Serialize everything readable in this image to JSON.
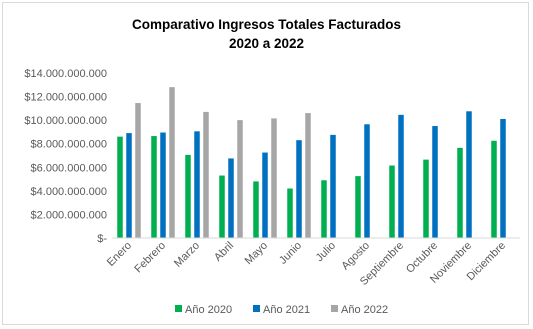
{
  "chart_data": {
    "type": "bar",
    "title_line1": "Comparativo  Ingresos Totales Facturados",
    "title_line2": "2020 a 2022",
    "categories": [
      "Enero",
      "Febrero",
      "Marzo",
      "Abril",
      "Mayo",
      "Junio",
      "Julio",
      "Agosto",
      "Septiembre",
      "Octubre",
      "Noviembre",
      "Diciembre"
    ],
    "series": [
      {
        "name": "Año 2020",
        "color": "#00b050",
        "values": [
          8600000000,
          8650000000,
          7050000000,
          5300000000,
          4800000000,
          4200000000,
          4900000000,
          5250000000,
          6150000000,
          6650000000,
          7650000000,
          8250000000
        ]
      },
      {
        "name": "Año 2021",
        "color": "#0070c0",
        "values": [
          8900000000,
          8950000000,
          9050000000,
          6750000000,
          7250000000,
          8300000000,
          8750000000,
          9650000000,
          10450000000,
          9500000000,
          10750000000,
          10100000000
        ]
      },
      {
        "name": "Año 2022",
        "color": "#a6a6a6",
        "values": [
          11450000000,
          12800000000,
          10700000000,
          10000000000,
          10150000000,
          10600000000,
          null,
          null,
          null,
          null,
          null,
          null
        ]
      }
    ],
    "ylim": [
      0,
      14000000000
    ],
    "yticks": [
      0,
      2000000000,
      4000000000,
      6000000000,
      8000000000,
      10000000000,
      12000000000,
      14000000000
    ],
    "ytick_labels": [
      "$-",
      "$2.000.000.000",
      "$4.000.000.000",
      "$6.000.000.000",
      "$8.000.000.000",
      "$10.000.000.000",
      "$12.000.000.000",
      "$14.000.000.000"
    ],
    "legend_position": "bottom",
    "grid": false
  }
}
